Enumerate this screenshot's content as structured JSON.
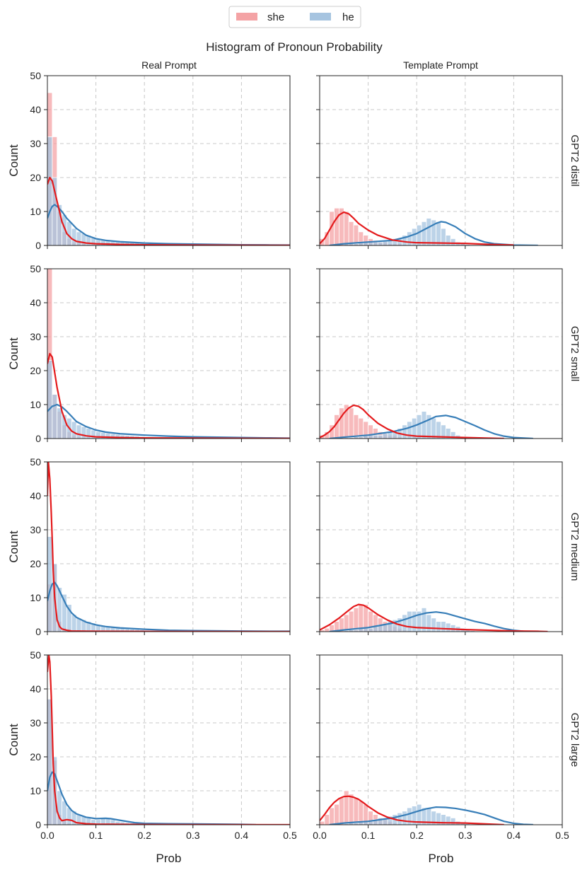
{
  "chart_data": {
    "type": "histogram-grid",
    "title": "Histogram of Pronoun Probability",
    "legend": {
      "placement": "top-center",
      "entries": [
        {
          "key": "she",
          "label": "she",
          "bar_color": "#f4a3a5",
          "line_color": "#e41a1c"
        },
        {
          "key": "he",
          "label": "he",
          "bar_color": "#a6c4e0",
          "line_color": "#377eb8"
        }
      ]
    },
    "columns": [
      "Real Prompt",
      "Template Prompt"
    ],
    "rows": [
      "GPT2 distil",
      "GPT2 small",
      "GPT2 medium",
      "GPT2 large"
    ],
    "xlabel": "Prob",
    "ylabel": "Count",
    "xlim": [
      0,
      0.5
    ],
    "ylim": [
      0,
      50
    ],
    "xticks": [
      0.0,
      0.1,
      0.2,
      0.3,
      0.4,
      0.5
    ],
    "xtick_labels": [
      "0.0",
      "0.1",
      "0.2",
      "0.3",
      "0.4",
      "0.5"
    ],
    "yticks": [
      0,
      10,
      20,
      30,
      40,
      50
    ],
    "ytick_labels": [
      "0",
      "10",
      "20",
      "30",
      "40",
      "50"
    ],
    "grid": true,
    "bin_width": 0.01,
    "panels": [
      {
        "row": "GPT2 distil",
        "column": "Real Prompt",
        "she": {
          "bin_start": 0.0,
          "counts": [
            45,
            32,
            10,
            4,
            2,
            1,
            1,
            0.5,
            0.3,
            0.2
          ]
        },
        "he": {
          "bin_start": 0.0,
          "counts": [
            32,
            20,
            12,
            9,
            7,
            5,
            4,
            3.5,
            3,
            2.5,
            2,
            1.8,
            1.5,
            1.3,
            1.1,
            1,
            0.9,
            0.8,
            0.7,
            0.6,
            0.5,
            0.5,
            0.4,
            0.4,
            0.3,
            0.3,
            0.3,
            0.2,
            0.2,
            0.2
          ]
        },
        "she_kde": {
          "x": [
            0,
            0.005,
            0.01,
            0.02,
            0.03,
            0.04,
            0.05,
            0.06,
            0.08,
            0.1,
            0.15,
            0.2,
            0.3,
            0.4,
            0.5
          ],
          "y": [
            18,
            20,
            19,
            13,
            7,
            3.5,
            2,
            1.2,
            0.7,
            0.5,
            0.3,
            0.2,
            0.1,
            0.05,
            0.02
          ]
        },
        "he_kde": {
          "x": [
            0,
            0.005,
            0.01,
            0.015,
            0.02,
            0.03,
            0.04,
            0.05,
            0.06,
            0.08,
            0.1,
            0.12,
            0.15,
            0.2,
            0.25,
            0.3,
            0.35,
            0.4,
            0.45,
            0.5
          ],
          "y": [
            8,
            10,
            11.5,
            12,
            11.5,
            10,
            8,
            6.5,
            5,
            3,
            2,
            1.5,
            1.1,
            0.7,
            0.5,
            0.4,
            0.3,
            0.2,
            0.15,
            0.1
          ]
        }
      },
      {
        "row": "GPT2 distil",
        "column": "Template Prompt",
        "she": {
          "bin_start": 0.0,
          "counts": [
            2,
            4,
            10,
            11,
            11,
            10,
            7,
            6,
            4,
            3,
            2,
            1.5,
            1,
            1,
            0.5,
            0.5,
            0.5,
            0.3
          ]
        },
        "he": {
          "bin_start": 0.05,
          "counts": [
            0.5,
            0.5,
            0.5,
            1,
            1,
            1,
            1,
            1,
            1.5,
            1.5,
            2,
            2,
            3,
            4,
            5,
            6,
            7,
            8,
            7.5,
            7,
            5,
            3,
            2,
            1,
            0.5,
            0.3
          ]
        },
        "she_kde": {
          "x": [
            0,
            0.01,
            0.02,
            0.03,
            0.04,
            0.05,
            0.06,
            0.07,
            0.08,
            0.1,
            0.12,
            0.15,
            0.18,
            0.2,
            0.25,
            0.3,
            0.35,
            0.4
          ],
          "y": [
            0.5,
            2,
            4.5,
            7,
            9,
            9.8,
            9.3,
            8,
            6.5,
            4.5,
            3,
            1.6,
            1,
            0.8,
            0.7,
            0.6,
            0.3,
            0.1
          ]
        },
        "he_kde": {
          "x": [
            0.02,
            0.05,
            0.1,
            0.15,
            0.18,
            0.2,
            0.22,
            0.24,
            0.25,
            0.26,
            0.28,
            0.3,
            0.32,
            0.34,
            0.36,
            0.4,
            0.45
          ],
          "y": [
            0,
            0.5,
            1,
            1.5,
            2.5,
            3.5,
            5,
            6.5,
            7,
            6.8,
            5.5,
            3.5,
            2,
            1,
            0.5,
            0.1,
            0
          ]
        }
      },
      {
        "row": "GPT2 small",
        "column": "Real Prompt",
        "she": {
          "bin_start": 0.0,
          "counts": [
            50,
            13,
            8,
            4,
            2,
            1,
            0.5,
            0.3
          ]
        },
        "he": {
          "bin_start": 0.0,
          "counts": [
            23,
            13,
            9,
            7,
            6,
            5,
            4,
            3.5,
            3,
            2.5,
            2,
            1.8,
            1.6,
            1.4,
            1.2,
            1,
            0.9,
            0.8,
            0.7,
            0.6,
            0.5,
            0.5,
            0.4,
            0.4,
            0.3
          ]
        },
        "she_kde": {
          "x": [
            0,
            0.005,
            0.01,
            0.02,
            0.03,
            0.04,
            0.05,
            0.06,
            0.08,
            0.1,
            0.15,
            0.2,
            0.3,
            0.4,
            0.5
          ],
          "y": [
            22,
            25,
            24,
            15,
            8,
            4,
            2.2,
            1.4,
            0.8,
            0.5,
            0.3,
            0.2,
            0.1,
            0.05,
            0.02
          ]
        },
        "he_kde": {
          "x": [
            0,
            0.01,
            0.02,
            0.03,
            0.04,
            0.05,
            0.06,
            0.08,
            0.1,
            0.12,
            0.15,
            0.2,
            0.25,
            0.3,
            0.35,
            0.4,
            0.45,
            0.5
          ],
          "y": [
            8,
            9.5,
            10,
            9.3,
            8,
            6.5,
            5,
            3.5,
            2.5,
            1.9,
            1.4,
            1,
            0.7,
            0.5,
            0.4,
            0.3,
            0.2,
            0.1
          ]
        }
      },
      {
        "row": "GPT2 small",
        "column": "Template Prompt",
        "she": {
          "bin_start": 0.0,
          "counts": [
            1,
            2,
            4,
            7,
            9,
            10,
            9,
            7,
            6,
            5,
            4,
            3,
            2,
            1.5,
            1,
            1,
            0.5,
            0.3
          ]
        },
        "he": {
          "bin_start": 0.05,
          "counts": [
            0.3,
            0.3,
            0.5,
            0.5,
            0.8,
            1,
            1,
            1,
            1.5,
            2,
            2,
            3,
            4,
            5,
            6,
            7,
            8,
            7,
            6,
            5,
            4,
            3,
            2,
            1,
            0.5,
            0.3
          ]
        },
        "she_kde": {
          "x": [
            0,
            0.01,
            0.02,
            0.03,
            0.04,
            0.05,
            0.06,
            0.07,
            0.08,
            0.09,
            0.1,
            0.12,
            0.14,
            0.16,
            0.18,
            0.2,
            0.25,
            0.3,
            0.35,
            0.38
          ],
          "y": [
            0.3,
            1,
            2,
            3.5,
            5.5,
            7.5,
            9,
            9.8,
            9.5,
            8.5,
            7,
            4.5,
            2.8,
            1.6,
            1,
            0.7,
            0.5,
            0.3,
            0.1,
            0
          ]
        },
        "he_kde": {
          "x": [
            0.02,
            0.05,
            0.1,
            0.15,
            0.18,
            0.2,
            0.22,
            0.24,
            0.26,
            0.28,
            0.3,
            0.32,
            0.34,
            0.36,
            0.38,
            0.4,
            0.44
          ],
          "y": [
            0,
            0.4,
            1,
            2,
            3,
            4,
            5.2,
            6.5,
            6.8,
            6.2,
            5,
            3.8,
            2.5,
            1.4,
            0.7,
            0.3,
            0
          ]
        }
      },
      {
        "row": "GPT2 medium",
        "column": "Real Prompt",
        "she": {
          "bin_start": 0.0,
          "counts": [
            14,
            20,
            3,
            1,
            0.5,
            0.3
          ]
        },
        "he": {
          "bin_start": 0.0,
          "counts": [
            28,
            20,
            13,
            11,
            8,
            5,
            4,
            3.5,
            3,
            2.5,
            2,
            1.8,
            1.5,
            1.3,
            1.1,
            1,
            0.8,
            0.7,
            0.6,
            0.5,
            0.4,
            0.3,
            0.3
          ]
        },
        "she_kde": {
          "x": [
            0,
            0.002,
            0.005,
            0.008,
            0.01,
            0.012,
            0.015,
            0.02,
            0.025,
            0.03,
            0.04,
            0.05,
            0.1,
            0.2,
            0.5
          ],
          "y": [
            40,
            50,
            45,
            35,
            27,
            18,
            10,
            3.5,
            1.5,
            0.8,
            0.4,
            0.2,
            0.1,
            0.05,
            0
          ]
        },
        "he_kde": {
          "x": [
            0,
            0.005,
            0.01,
            0.015,
            0.02,
            0.03,
            0.04,
            0.05,
            0.06,
            0.08,
            0.1,
            0.12,
            0.15,
            0.2,
            0.25,
            0.3,
            0.4,
            0.5
          ],
          "y": [
            9,
            12,
            14,
            14.5,
            13.5,
            10.5,
            7.5,
            5.5,
            4.2,
            2.8,
            2,
            1.5,
            1.1,
            0.7,
            0.4,
            0.3,
            0.15,
            0.1
          ]
        }
      },
      {
        "row": "GPT2 medium",
        "column": "Template Prompt",
        "she": {
          "bin_start": 0.0,
          "counts": [
            0.5,
            1,
            2,
            3,
            4,
            5,
            6,
            7,
            8,
            8,
            6,
            5,
            4,
            3,
            2,
            1.5,
            1,
            0.5,
            0.3
          ]
        },
        "he": {
          "bin_start": 0.05,
          "counts": [
            0.3,
            0.5,
            0.5,
            1,
            1,
            1,
            1.5,
            2,
            2,
            3,
            3.5,
            4,
            5,
            6,
            6,
            6,
            7,
            5,
            4,
            3,
            3,
            2.5,
            2,
            1.5,
            1,
            0.5,
            0.3
          ]
        },
        "she_kde": {
          "x": [
            0,
            0.02,
            0.04,
            0.06,
            0.07,
            0.08,
            0.09,
            0.1,
            0.12,
            0.14,
            0.16,
            0.18,
            0.2,
            0.25,
            0.3,
            0.35,
            0.4,
            0.45,
            0.47
          ],
          "y": [
            0.5,
            2,
            4,
            6.3,
            7.4,
            8,
            7.8,
            7,
            5,
            3.4,
            2.2,
            1.5,
            1.2,
            0.9,
            0.6,
            0.4,
            0.2,
            0.1,
            0
          ]
        },
        "he_kde": {
          "x": [
            0.02,
            0.05,
            0.1,
            0.15,
            0.18,
            0.2,
            0.22,
            0.24,
            0.26,
            0.28,
            0.3,
            0.32,
            0.34,
            0.36,
            0.38,
            0.4,
            0.42,
            0.44
          ],
          "y": [
            0,
            0.5,
            1.2,
            2.5,
            3.8,
            4.8,
            5.5,
            5.8,
            5.4,
            4.6,
            3.8,
            3,
            2.4,
            1.6,
            0.9,
            0.4,
            0.1,
            0
          ]
        }
      },
      {
        "row": "GPT2 large",
        "column": "Real Prompt",
        "she": {
          "bin_start": 0.0,
          "counts": [
            37,
            19,
            3,
            1,
            0.5,
            0.3
          ]
        },
        "he": {
          "bin_start": 0.0,
          "counts": [
            37,
            20,
            10,
            7,
            5,
            4,
            3,
            2.5,
            2,
            1.5,
            1.5,
            2,
            2,
            1.5,
            1,
            0.8,
            0.6,
            0.5,
            0.4,
            0.3
          ]
        },
        "she_kde": {
          "x": [
            0,
            0.003,
            0.005,
            0.008,
            0.01,
            0.012,
            0.015,
            0.02,
            0.025,
            0.03,
            0.04,
            0.05,
            0.06,
            0.08,
            0.1,
            0.2,
            0.5
          ],
          "y": [
            45,
            50,
            48,
            38,
            28,
            18,
            10,
            4,
            2,
            1.2,
            1.5,
            1.3,
            0.6,
            0.3,
            0.15,
            0.05,
            0
          ]
        },
        "he_kde": {
          "x": [
            0,
            0.005,
            0.01,
            0.015,
            0.02,
            0.03,
            0.04,
            0.05,
            0.06,
            0.08,
            0.1,
            0.12,
            0.13,
            0.15,
            0.18,
            0.2,
            0.25,
            0.3,
            0.4,
            0.43
          ],
          "y": [
            10,
            14,
            15.5,
            15,
            13,
            9,
            6,
            4.2,
            3.2,
            2.2,
            1.8,
            1.9,
            1.8,
            1.3,
            0.6,
            0.4,
            0.3,
            0.25,
            0.1,
            0
          ]
        }
      },
      {
        "row": "GPT2 large",
        "column": "Template Prompt",
        "she": {
          "bin_start": 0.0,
          "counts": [
            1,
            3,
            5,
            6,
            8,
            10,
            9,
            8,
            7,
            6,
            4,
            3,
            2,
            1.5,
            1,
            0.5,
            0.3
          ]
        },
        "he": {
          "bin_start": 0.05,
          "counts": [
            0.3,
            0.5,
            0.5,
            1,
            1,
            1,
            1.5,
            2,
            2,
            2.5,
            3,
            3.5,
            4,
            5,
            5.5,
            6,
            5,
            5,
            4,
            3.5,
            3,
            2.5,
            2,
            1,
            0.5,
            0.3
          ]
        },
        "she_kde": {
          "x": [
            0,
            0.01,
            0.02,
            0.03,
            0.04,
            0.05,
            0.06,
            0.07,
            0.08,
            0.09,
            0.1,
            0.12,
            0.14,
            0.16,
            0.18,
            0.2,
            0.25,
            0.3,
            0.35,
            0.38
          ],
          "y": [
            1.2,
            3,
            5,
            6.6,
            7.7,
            8.3,
            8.4,
            8.1,
            7.5,
            6.5,
            5.4,
            3.5,
            2.2,
            1.4,
            1,
            0.8,
            0.6,
            0.5,
            0.2,
            0
          ]
        },
        "he_kde": {
          "x": [
            0.02,
            0.05,
            0.1,
            0.15,
            0.18,
            0.2,
            0.22,
            0.24,
            0.26,
            0.28,
            0.3,
            0.32,
            0.34,
            0.36,
            0.38,
            0.4,
            0.42,
            0.44
          ],
          "y": [
            0,
            0.5,
            1,
            2,
            3,
            3.9,
            4.7,
            5.2,
            5.1,
            4.8,
            4.3,
            3.7,
            3,
            2,
            1,
            0.4,
            0.1,
            0
          ]
        }
      }
    ]
  }
}
